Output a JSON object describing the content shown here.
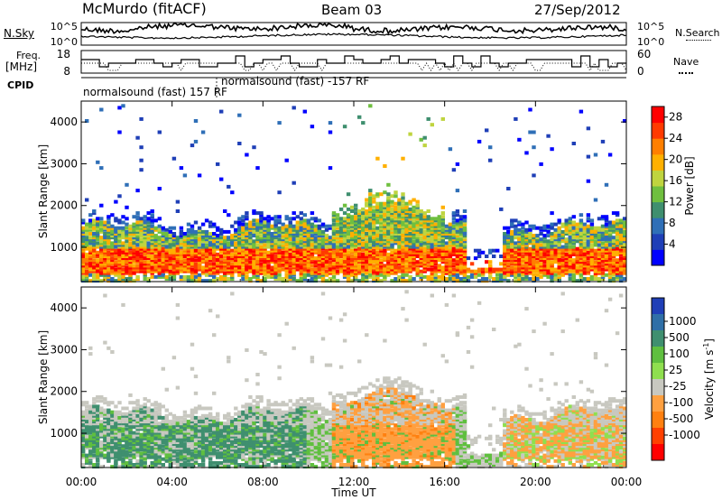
{
  "header": {
    "station": "McMurdo (fitACF)",
    "beam": "Beam 03",
    "date": "27/Sep/2012"
  },
  "noise_panel": {
    "left_label": "N.Sky",
    "right_label": "N.Search",
    "left_ticks": [
      "10^5",
      "10^0"
    ],
    "right_ticks": [
      "10^5",
      "10^0"
    ]
  },
  "freq_panel": {
    "left_label_1": "Freq.",
    "left_label_2": "[MHz]",
    "right_label": "Nave",
    "left_ticks": [
      "18",
      "8"
    ],
    "right_ticks": [
      "60",
      "0"
    ]
  },
  "cpid": {
    "label": "CPID",
    "mode_1": "normalsound (fast) 157 RF",
    "mode_2": "normalsound (fast) -157 RF"
  },
  "x_axis": {
    "title": "Time UT",
    "ticks": [
      "00:00",
      "04:00",
      "08:00",
      "12:00",
      "16:00",
      "20:00",
      "00:00"
    ]
  },
  "colors": {
    "power": [
      "#0000ff",
      "#1f3fb7",
      "#2f6fb7",
      "#3f8f6f",
      "#6fbf3f",
      "#bfd43f",
      "#ffb000",
      "#ff7f00",
      "#ff3a00",
      "#ff0000"
    ],
    "velocity_pos": [
      "#1f3fb7",
      "#2f6fa7",
      "#3f8f6f",
      "#5fbf3f",
      "#8fdf4f"
    ],
    "velocity_neg": [
      "#c8c8c0",
      "#ffa040",
      "#ff8010",
      "#ff4000",
      "#ff0000"
    ]
  },
  "chart_data": [
    {
      "type": "heatmap",
      "title": "Power",
      "ylabel": "Slant Range [km]",
      "xlabel": "",
      "ylim": [
        180,
        4500
      ],
      "xlim": [
        0,
        24
      ],
      "y_ticks": [
        "1000",
        "2000",
        "3000",
        "4000"
      ],
      "colorbar": {
        "label": "Power [dB]",
        "ticks": [
          "4",
          "8",
          "12",
          "16",
          "20",
          "24",
          "28"
        ],
        "range": [
          0,
          30
        ]
      }
    },
    {
      "type": "heatmap",
      "title": "Velocity",
      "ylabel": "Slant Range [km]",
      "xlabel": "Time UT",
      "ylim": [
        180,
        4500
      ],
      "xlim": [
        0,
        24
      ],
      "y_ticks": [
        "1000",
        "2000",
        "3000",
        "4000"
      ],
      "colorbar": {
        "label": "Velocity [m s",
        "label_sup": "-1",
        "label_end": "]",
        "ticks": [
          "1000",
          "500",
          "100",
          "25",
          "-25",
          "-100",
          "-500",
          "-1000"
        ]
      }
    }
  ]
}
